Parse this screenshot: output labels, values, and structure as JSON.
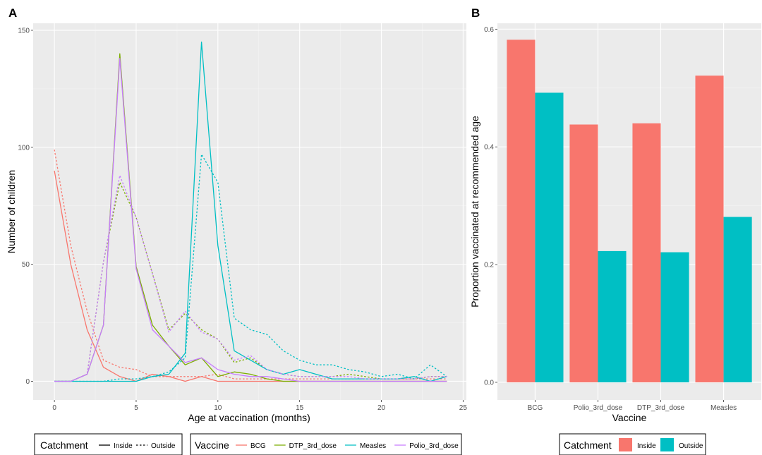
{
  "chart_data": [
    {
      "panel": "A",
      "type": "line",
      "xlabel": "Age at vaccination (months)",
      "ylabel": "Number of children",
      "xlim": [
        -1.3,
        25.2
      ],
      "ylim": [
        -8,
        153
      ],
      "x_ticks": [
        0,
        5,
        10,
        15,
        20,
        25
      ],
      "y_ticks": [
        0,
        50,
        100,
        150
      ],
      "grid": true,
      "x": [
        0,
        1,
        2,
        3,
        4,
        5,
        6,
        7,
        8,
        9,
        10,
        11,
        12,
        13,
        14,
        15,
        16,
        17,
        18,
        19,
        20,
        21,
        22,
        23,
        24
      ],
      "series": [
        {
          "name": "BCG",
          "catchment": "Inside",
          "color": "#F8766D",
          "values": [
            90,
            50,
            22,
            6,
            2,
            0,
            3,
            2,
            0,
            2,
            0,
            0,
            0,
            0,
            0,
            0,
            0,
            0,
            0,
            0,
            0,
            0,
            0,
            0,
            0
          ]
        },
        {
          "name": "BCG",
          "catchment": "Outside",
          "color": "#F8766D",
          "values": [
            99,
            58,
            30,
            9,
            6,
            5,
            2,
            2,
            2,
            2,
            3,
            1,
            1,
            1,
            1,
            1,
            1,
            1,
            1,
            1,
            1,
            1,
            1,
            1,
            1
          ]
        },
        {
          "name": "DTP_3rd_dose",
          "catchment": "Inside",
          "color": "#7CAE00",
          "values": [
            0,
            0,
            3,
            24,
            140,
            49,
            24,
            15,
            7,
            10,
            2,
            4,
            3,
            1,
            0,
            0,
            0,
            0,
            0,
            0,
            0,
            0,
            0,
            0,
            0
          ]
        },
        {
          "name": "DTP_3rd_dose",
          "catchment": "Outside",
          "color": "#7CAE00",
          "values": [
            0,
            0,
            3,
            51,
            85,
            70,
            46,
            22,
            29,
            22,
            18,
            8,
            10,
            5,
            3,
            2,
            2,
            2,
            3,
            2,
            1,
            1,
            1,
            2,
            2
          ]
        },
        {
          "name": "Measles",
          "catchment": "Inside",
          "color": "#00BFC4",
          "values": [
            0,
            0,
            0,
            0,
            0,
            0,
            2,
            3,
            12,
            145,
            58,
            13,
            9,
            5,
            3,
            5,
            3,
            1,
            1,
            1,
            1,
            1,
            2,
            0,
            2
          ]
        },
        {
          "name": "Measles",
          "catchment": "Outside",
          "color": "#00BFC4",
          "values": [
            0,
            0,
            0,
            0,
            1,
            1,
            2,
            4,
            10,
            97,
            85,
            27,
            22,
            20,
            13,
            9,
            7,
            7,
            5,
            4,
            2,
            3,
            1,
            7,
            2
          ]
        },
        {
          "name": "Polio_3rd_dose",
          "catchment": "Inside",
          "color": "#C77CFF",
          "values": [
            0,
            0,
            3,
            24,
            138,
            48,
            22,
            15,
            8,
            10,
            5,
            3,
            2,
            2,
            1,
            0,
            0,
            0,
            0,
            0,
            0,
            0,
            0,
            0,
            0
          ]
        },
        {
          "name": "Polio_3rd_dose",
          "catchment": "Outside",
          "color": "#C77CFF",
          "values": [
            0,
            0,
            3,
            51,
            88,
            70,
            46,
            21,
            30,
            21,
            18,
            9,
            11,
            5,
            3,
            2,
            2,
            2,
            2,
            1,
            1,
            1,
            1,
            2,
            2
          ]
        }
      ],
      "legends": [
        {
          "title": "Catchment",
          "items": [
            "Inside",
            "Outside"
          ]
        },
        {
          "title": "Vaccine",
          "items": [
            "BCG",
            "DTP_3rd_dose",
            "Measles",
            "Polio_3rd_dose"
          ]
        }
      ]
    },
    {
      "panel": "B",
      "type": "bar",
      "xlabel": "Vaccine",
      "ylabel": "Proportion vaccinated at recommended age",
      "ylim": [
        -0.03,
        0.61
      ],
      "y_ticks": [
        0.0,
        0.2,
        0.4,
        0.6
      ],
      "y_tick_labels": [
        "0.0",
        "0.2",
        "0.4",
        "0.6"
      ],
      "grid": true,
      "categories": [
        "BCG",
        "Polio_3rd_dose",
        "DTP_3rd_dose",
        "Measles"
      ],
      "series": [
        {
          "name": "Inside",
          "color": "#F8766D",
          "values": [
            0.582,
            0.438,
            0.44,
            0.521
          ]
        },
        {
          "name": "Outside",
          "color": "#00BFC4",
          "values": [
            0.492,
            0.223,
            0.221,
            0.281
          ]
        }
      ],
      "legend": {
        "title": "Catchment",
        "items": [
          "Inside",
          "Outside"
        ]
      }
    }
  ],
  "panel_labels": {
    "a": "A",
    "b": "B"
  }
}
